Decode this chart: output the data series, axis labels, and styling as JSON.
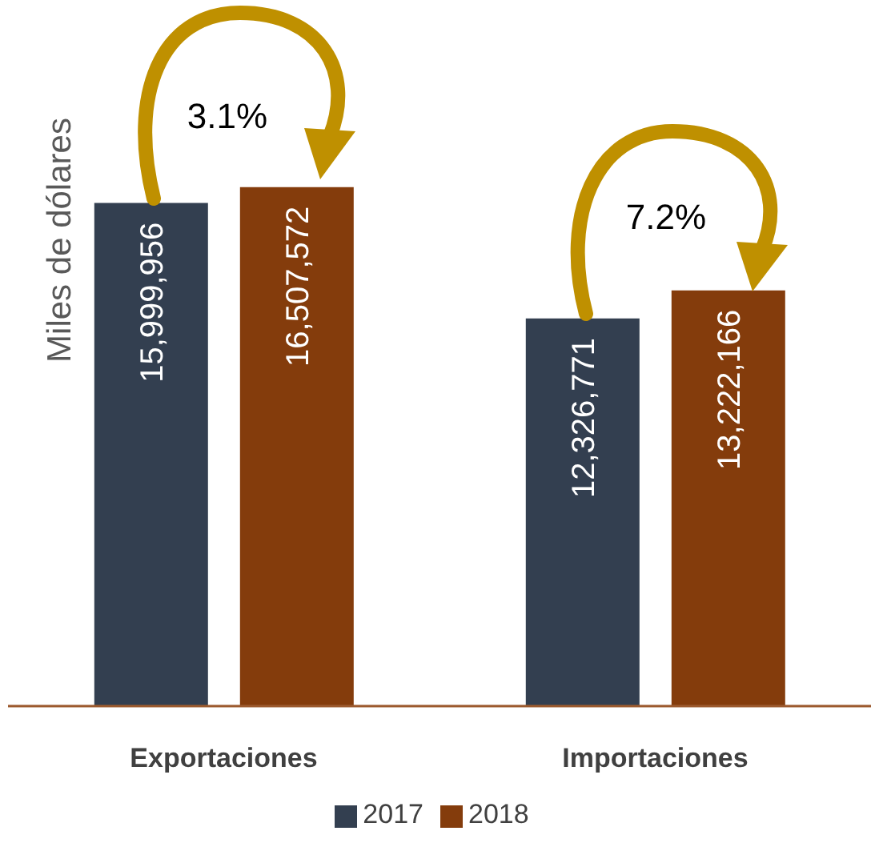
{
  "chart_data": {
    "type": "bar",
    "ylabel": "Miles de dólares",
    "categories": [
      "Exportaciones",
      "Importaciones"
    ],
    "series": [
      {
        "name": "2017",
        "color": "#333f50",
        "values": [
          15999956,
          12326771
        ],
        "value_labels": [
          "15,999,956",
          "12,326,771"
        ]
      },
      {
        "name": "2018",
        "color": "#843c0c",
        "values": [
          16507572,
          13222166
        ],
        "value_labels": [
          "16,507,572",
          "13,222,166"
        ]
      }
    ],
    "legend": "bottom",
    "grid": false,
    "annotations": [
      "3.1%",
      "7.2%"
    ]
  }
}
